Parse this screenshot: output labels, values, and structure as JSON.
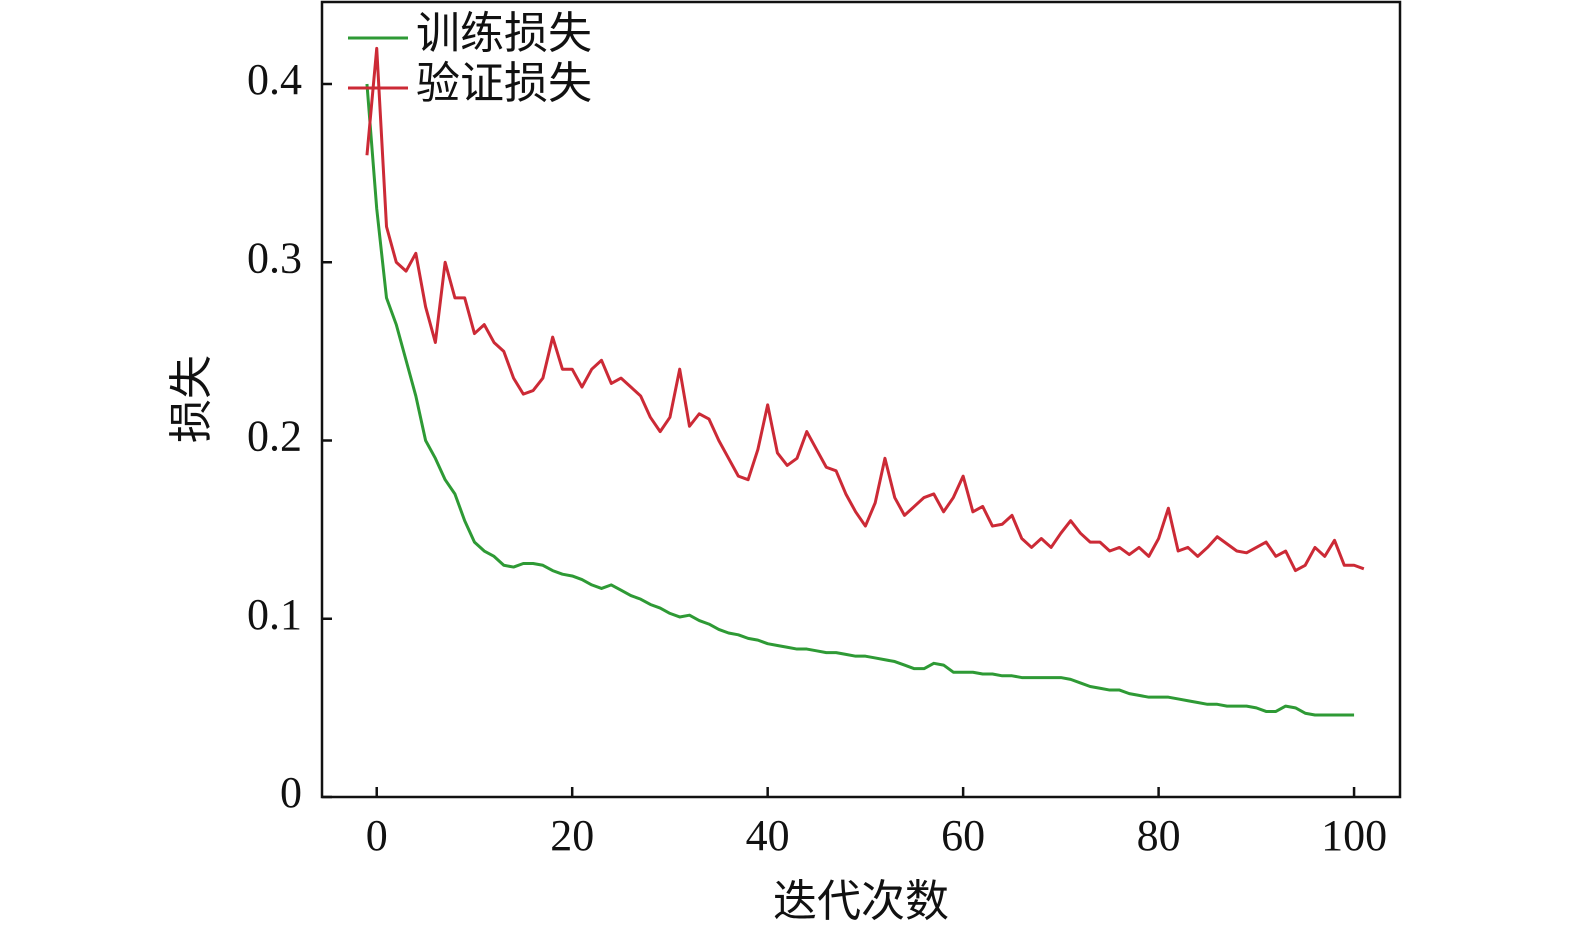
{
  "chart_data": {
    "type": "line",
    "x_label": "迭代次数",
    "y_label": "损失",
    "x": [
      -1,
      0,
      1,
      2,
      3,
      4,
      5,
      6,
      7,
      8,
      9,
      10,
      11,
      12,
      13,
      14,
      15,
      16,
      17,
      18,
      19,
      20,
      21,
      22,
      23,
      24,
      25,
      26,
      27,
      28,
      29,
      30,
      31,
      32,
      33,
      34,
      35,
      36,
      37,
      38,
      39,
      40,
      41,
      42,
      43,
      44,
      45,
      46,
      47,
      48,
      49,
      50,
      51,
      52,
      53,
      54,
      55,
      56,
      57,
      58,
      59,
      60,
      61,
      62,
      63,
      64,
      65,
      66,
      67,
      68,
      69,
      70,
      71,
      72,
      73,
      74,
      75,
      76,
      77,
      78,
      79,
      80,
      81,
      82,
      83,
      84,
      85,
      86,
      87,
      88,
      89,
      90,
      91,
      92,
      93,
      94,
      95,
      96,
      97,
      98,
      99,
      100,
      101
    ],
    "series": [
      {
        "name": "训练损失",
        "color": "#2e9a35",
        "values": [
          0.4,
          0.33,
          0.28,
          0.265,
          0.245,
          0.225,
          0.2,
          0.19,
          0.178,
          0.17,
          0.155,
          0.143,
          0.138,
          0.135,
          0.13,
          0.129,
          0.131,
          0.131,
          0.13,
          0.127,
          0.125,
          0.124,
          0.122,
          0.119,
          0.117,
          0.119,
          0.116,
          0.113,
          0.111,
          0.108,
          0.106,
          0.103,
          0.101,
          0.102,
          0.099,
          0.097,
          0.094,
          0.092,
          0.091,
          0.089,
          0.088,
          0.086,
          0.085,
          0.084,
          0.083,
          0.083,
          0.082,
          0.081,
          0.081,
          0.08,
          0.079,
          0.079,
          0.078,
          0.077,
          0.076,
          0.074,
          0.072,
          0.072,
          0.075,
          0.074,
          0.07,
          0.07,
          0.07,
          0.069,
          0.069,
          0.068,
          0.068,
          0.067,
          0.067,
          0.067,
          0.067,
          0.067,
          0.066,
          0.064,
          0.062,
          0.061,
          0.06,
          0.06,
          0.058,
          0.057,
          0.056,
          0.056,
          0.056,
          0.055,
          0.054,
          0.053,
          0.052,
          0.052,
          0.051,
          0.051,
          0.051,
          0.05,
          0.048,
          0.048,
          0.051,
          0.05,
          0.047,
          0.046,
          0.046,
          0.046,
          0.046,
          0.046,
          null
        ]
      },
      {
        "name": "验证损失",
        "color": "#cc2a36",
        "values": [
          0.36,
          0.42,
          0.32,
          0.3,
          0.295,
          0.305,
          0.275,
          0.255,
          0.3,
          0.28,
          0.28,
          0.26,
          0.265,
          0.255,
          0.25,
          0.235,
          0.226,
          0.228,
          0.235,
          0.258,
          0.24,
          0.24,
          0.23,
          0.24,
          0.245,
          0.232,
          0.235,
          0.23,
          0.225,
          0.213,
          0.205,
          0.213,
          0.24,
          0.208,
          0.215,
          0.212,
          0.2,
          0.19,
          0.18,
          0.178,
          0.195,
          0.22,
          0.193,
          0.186,
          0.19,
          0.205,
          0.195,
          0.185,
          0.183,
          0.17,
          0.16,
          0.152,
          0.165,
          0.19,
          0.168,
          0.158,
          0.163,
          0.168,
          0.17,
          0.16,
          0.168,
          0.18,
          0.16,
          0.163,
          0.152,
          0.153,
          0.158,
          0.145,
          0.14,
          0.145,
          0.14,
          0.148,
          0.155,
          0.148,
          0.143,
          0.143,
          0.138,
          0.14,
          0.136,
          0.14,
          0.135,
          0.145,
          0.162,
          0.138,
          0.14,
          0.135,
          0.14,
          0.146,
          0.142,
          0.138,
          0.137,
          0.14,
          0.143,
          0.135,
          0.138,
          0.127,
          0.13,
          0.14,
          0.135,
          0.144,
          0.13,
          0.13,
          0.128
        ]
      }
    ],
    "xlim": [
      -5.6,
      104.7
    ],
    "ylim": [
      0,
      0.446
    ],
    "xticks": [
      0,
      20,
      40,
      60,
      80,
      100
    ],
    "yticks": [
      0,
      0.1,
      0.2,
      0.3,
      0.4
    ],
    "legend": "upper-left"
  }
}
